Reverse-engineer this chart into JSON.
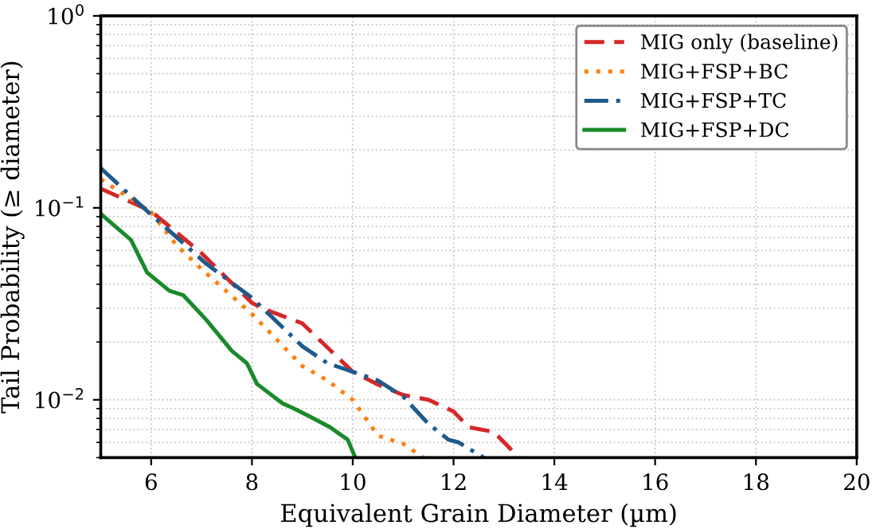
{
  "chart_data": {
    "type": "line",
    "xlabel": "Equivalent Grain Diameter (µm)",
    "ylabel": "Tail Probability (≥ diameter)",
    "log": "y",
    "grid": true,
    "legend": "top right",
    "xlim": [
      5,
      20
    ],
    "xticks": [
      6,
      8,
      10,
      12,
      14,
      16,
      18,
      20
    ],
    "ylim": [
      0.005,
      1
    ],
    "yticks": [
      {
        "value": 0.01,
        "label": "10$^{−2}$"
      },
      {
        "value": 0.1,
        "label": "10$^{−1}$"
      },
      {
        "value": 1,
        "label": "10$^{0}$"
      }
    ],
    "series": [
      {
        "name": "MIG only (baseline)",
        "color": "#d62728",
        "line_style": "dashed",
        "x": [
          5,
          6,
          7,
          8,
          8.2,
          9,
          10,
          10.5,
          11,
          11.5,
          12,
          12.3,
          12.8,
          13.3
        ],
        "values": [
          0.126,
          0.096,
          0.058,
          0.032,
          0.03,
          0.025,
          0.014,
          0.012,
          0.0106,
          0.01,
          0.0087,
          0.0072,
          0.0068,
          0.005
        ]
      },
      {
        "name": "MIG+FSP+BC",
        "color": "#ff7f0e",
        "line_style": "dotted",
        "x": [
          5,
          6,
          6.5,
          7,
          8,
          9,
          9.5,
          10,
          10.5,
          11,
          11.4
        ],
        "values": [
          0.141,
          0.095,
          0.064,
          0.048,
          0.028,
          0.015,
          0.0126,
          0.01,
          0.0065,
          0.0059,
          0.005
        ]
      },
      {
        "name": "MIG+FSP+TC",
        "color": "#1f5a8c",
        "line_style": "dashdot",
        "x": [
          5,
          5.85,
          7.1,
          8,
          9,
          9.5,
          10,
          10.5,
          11,
          11.5,
          11.9,
          12.1,
          12.6
        ],
        "values": [
          0.161,
          0.1,
          0.051,
          0.034,
          0.019,
          0.0155,
          0.014,
          0.0126,
          0.0104,
          0.0075,
          0.0062,
          0.006,
          0.005
        ]
      },
      {
        "name": "MIG+FSP+DC",
        "color": "#1a8a2a",
        "line_style": "solid",
        "x": [
          5,
          5.6,
          5.92,
          6.36,
          6.64,
          7.1,
          7.6,
          7.9,
          8.1,
          8.6,
          8.8,
          9.1,
          9.55,
          9.9,
          10.05
        ],
        "values": [
          0.093,
          0.068,
          0.046,
          0.037,
          0.035,
          0.026,
          0.018,
          0.0155,
          0.0121,
          0.0096,
          0.0091,
          0.0083,
          0.0072,
          0.0062,
          0.005
        ]
      }
    ]
  }
}
